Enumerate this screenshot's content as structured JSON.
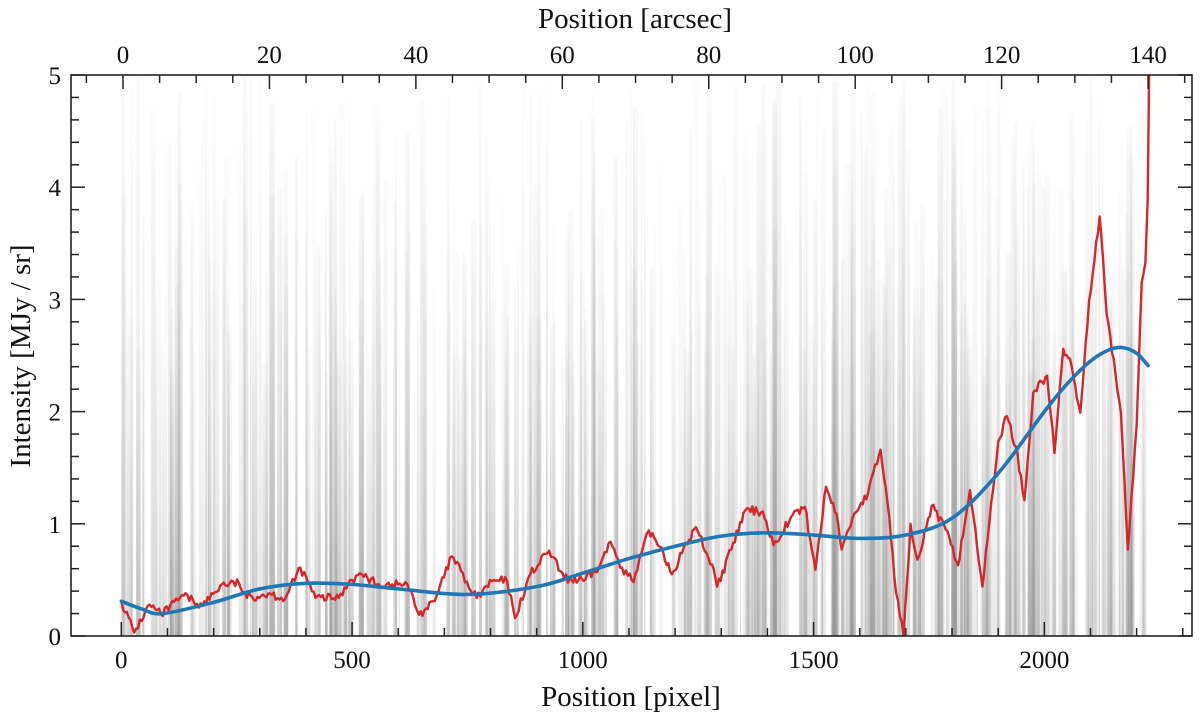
{
  "chart_data": {
    "type": "line",
    "xlabel": "Position [pixel]",
    "ylabel": "Intensity [MJy / sr]",
    "top_xlabel": "Position [arcsec]",
    "xlim": [
      -109,
      2320
    ],
    "ylim": [
      0,
      5
    ],
    "top_xlim": [
      -7.1,
      146
    ],
    "x_ticks": [
      0,
      500,
      1000,
      1500,
      2000
    ],
    "x_minor_step": 100,
    "y_ticks": [
      0,
      1,
      2,
      3,
      4,
      5
    ],
    "y_minor_step": 0.2,
    "top_x_ticks": [
      0,
      20,
      40,
      60,
      80,
      100,
      120,
      140
    ],
    "top_x_minor_step": 5,
    "grid": false,
    "background": "grey vertical streaks (ensemble of individual profiles)",
    "colors": {
      "profile": "#d62728",
      "fit": "#1f77b4",
      "axes": "#222222"
    },
    "series": [
      {
        "x": [
          0,
          28,
          61,
          86,
          135,
          176,
          218,
          255,
          272,
          322,
          355,
          388,
          421,
          471,
          496,
          521,
          554,
          587,
          620,
          645,
          679,
          716,
          736,
          753,
          770,
          803,
          836,
          853,
          886,
          927,
          960,
          1002,
          1035,
          1060,
          1085,
          1110,
          1143,
          1170,
          1193,
          1215,
          1245,
          1284,
          1291,
          1322,
          1352,
          1390,
          1413,
          1451,
          1481,
          1504,
          1527,
          1550,
          1561,
          1588,
          1618,
          1645,
          1664,
          1679,
          1695,
          1710,
          1725,
          1756,
          1786,
          1813,
          1839,
          1866,
          1900,
          1919,
          1938,
          1957,
          1976,
          2006,
          2022,
          2041,
          2059,
          2078,
          2097,
          2120,
          2135,
          2166,
          2181,
          2200,
          2211,
          2219,
          2224,
          2227
        ],
        "y": [
          0.31,
          0.03,
          0.28,
          0.19,
          0.36,
          0.27,
          0.46,
          0.47,
          0.34,
          0.38,
          0.33,
          0.61,
          0.34,
          0.34,
          0.5,
          0.55,
          0.46,
          0.46,
          0.46,
          0.19,
          0.31,
          0.71,
          0.58,
          0.43,
          0.34,
          0.49,
          0.49,
          0.16,
          0.55,
          0.76,
          0.51,
          0.49,
          0.61,
          0.84,
          0.61,
          0.48,
          0.94,
          0.79,
          0.55,
          0.74,
          0.97,
          0.59,
          0.44,
          0.77,
          1.12,
          1.11,
          0.81,
          1.06,
          1.15,
          0.59,
          1.33,
          1.09,
          0.77,
          1.09,
          1.27,
          1.66,
          1.06,
          0.38,
          0.0,
          1.0,
          0.68,
          1.16,
          0.95,
          0.63,
          1.3,
          0.44,
          1.73,
          1.96,
          1.69,
          1.21,
          2.17,
          2.32,
          1.63,
          2.56,
          2.41,
          1.99,
          2.99,
          3.74,
          2.87,
          1.99,
          0.77,
          1.87,
          3.15,
          3.33,
          3.89,
          5.0
        ]
      },
      {
        "x": [
          0,
          45,
          90,
          200,
          300,
          400,
          500,
          600,
          750,
          900,
          1000,
          1100,
          1200,
          1300,
          1400,
          1500,
          1600,
          1700,
          1800,
          1900,
          2000,
          2050,
          2100,
          2140,
          2170,
          2200,
          2225
        ],
        "y": [
          0.31,
          0.24,
          0.2,
          0.3,
          0.42,
          0.47,
          0.46,
          0.42,
          0.37,
          0.44,
          0.56,
          0.69,
          0.8,
          0.89,
          0.92,
          0.9,
          0.87,
          0.9,
          1.05,
          1.45,
          2.0,
          2.25,
          2.45,
          2.55,
          2.57,
          2.52,
          2.41
        ]
      }
    ]
  }
}
